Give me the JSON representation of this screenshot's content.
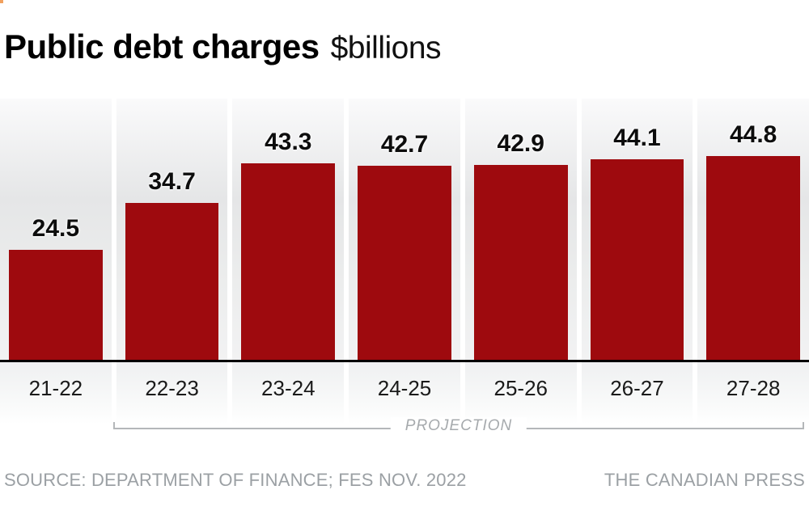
{
  "decoration": {
    "corner_speck_color": "#f2a15f"
  },
  "title": {
    "main": "Public debt charges",
    "unit": "$billions"
  },
  "chart_data": {
    "type": "bar",
    "title": "Public debt charges",
    "unit_label": "$billions",
    "categories": [
      "21-22",
      "22-23",
      "23-24",
      "24-25",
      "25-26",
      "26-27",
      "27-28"
    ],
    "values": [
      24.5,
      34.7,
      43.3,
      42.7,
      42.9,
      44.1,
      44.8
    ],
    "value_labels": [
      "24.5",
      "34.7",
      "43.3",
      "42.7",
      "42.9",
      "44.1",
      "44.8"
    ],
    "ylim": [
      0,
      57
    ],
    "grid": false,
    "legend": "none",
    "bar_color": "#9e0a0e",
    "axis_color": "#000000",
    "projection": {
      "label": "PROJECTION",
      "applies_to": [
        "22-23",
        "23-24",
        "24-25",
        "25-26",
        "26-27",
        "27-28"
      ]
    }
  },
  "footer": {
    "source": "SOURCE: DEPARTMENT OF FINANCE; FES NOV. 2022",
    "credit": "THE CANADIAN PRESS"
  }
}
